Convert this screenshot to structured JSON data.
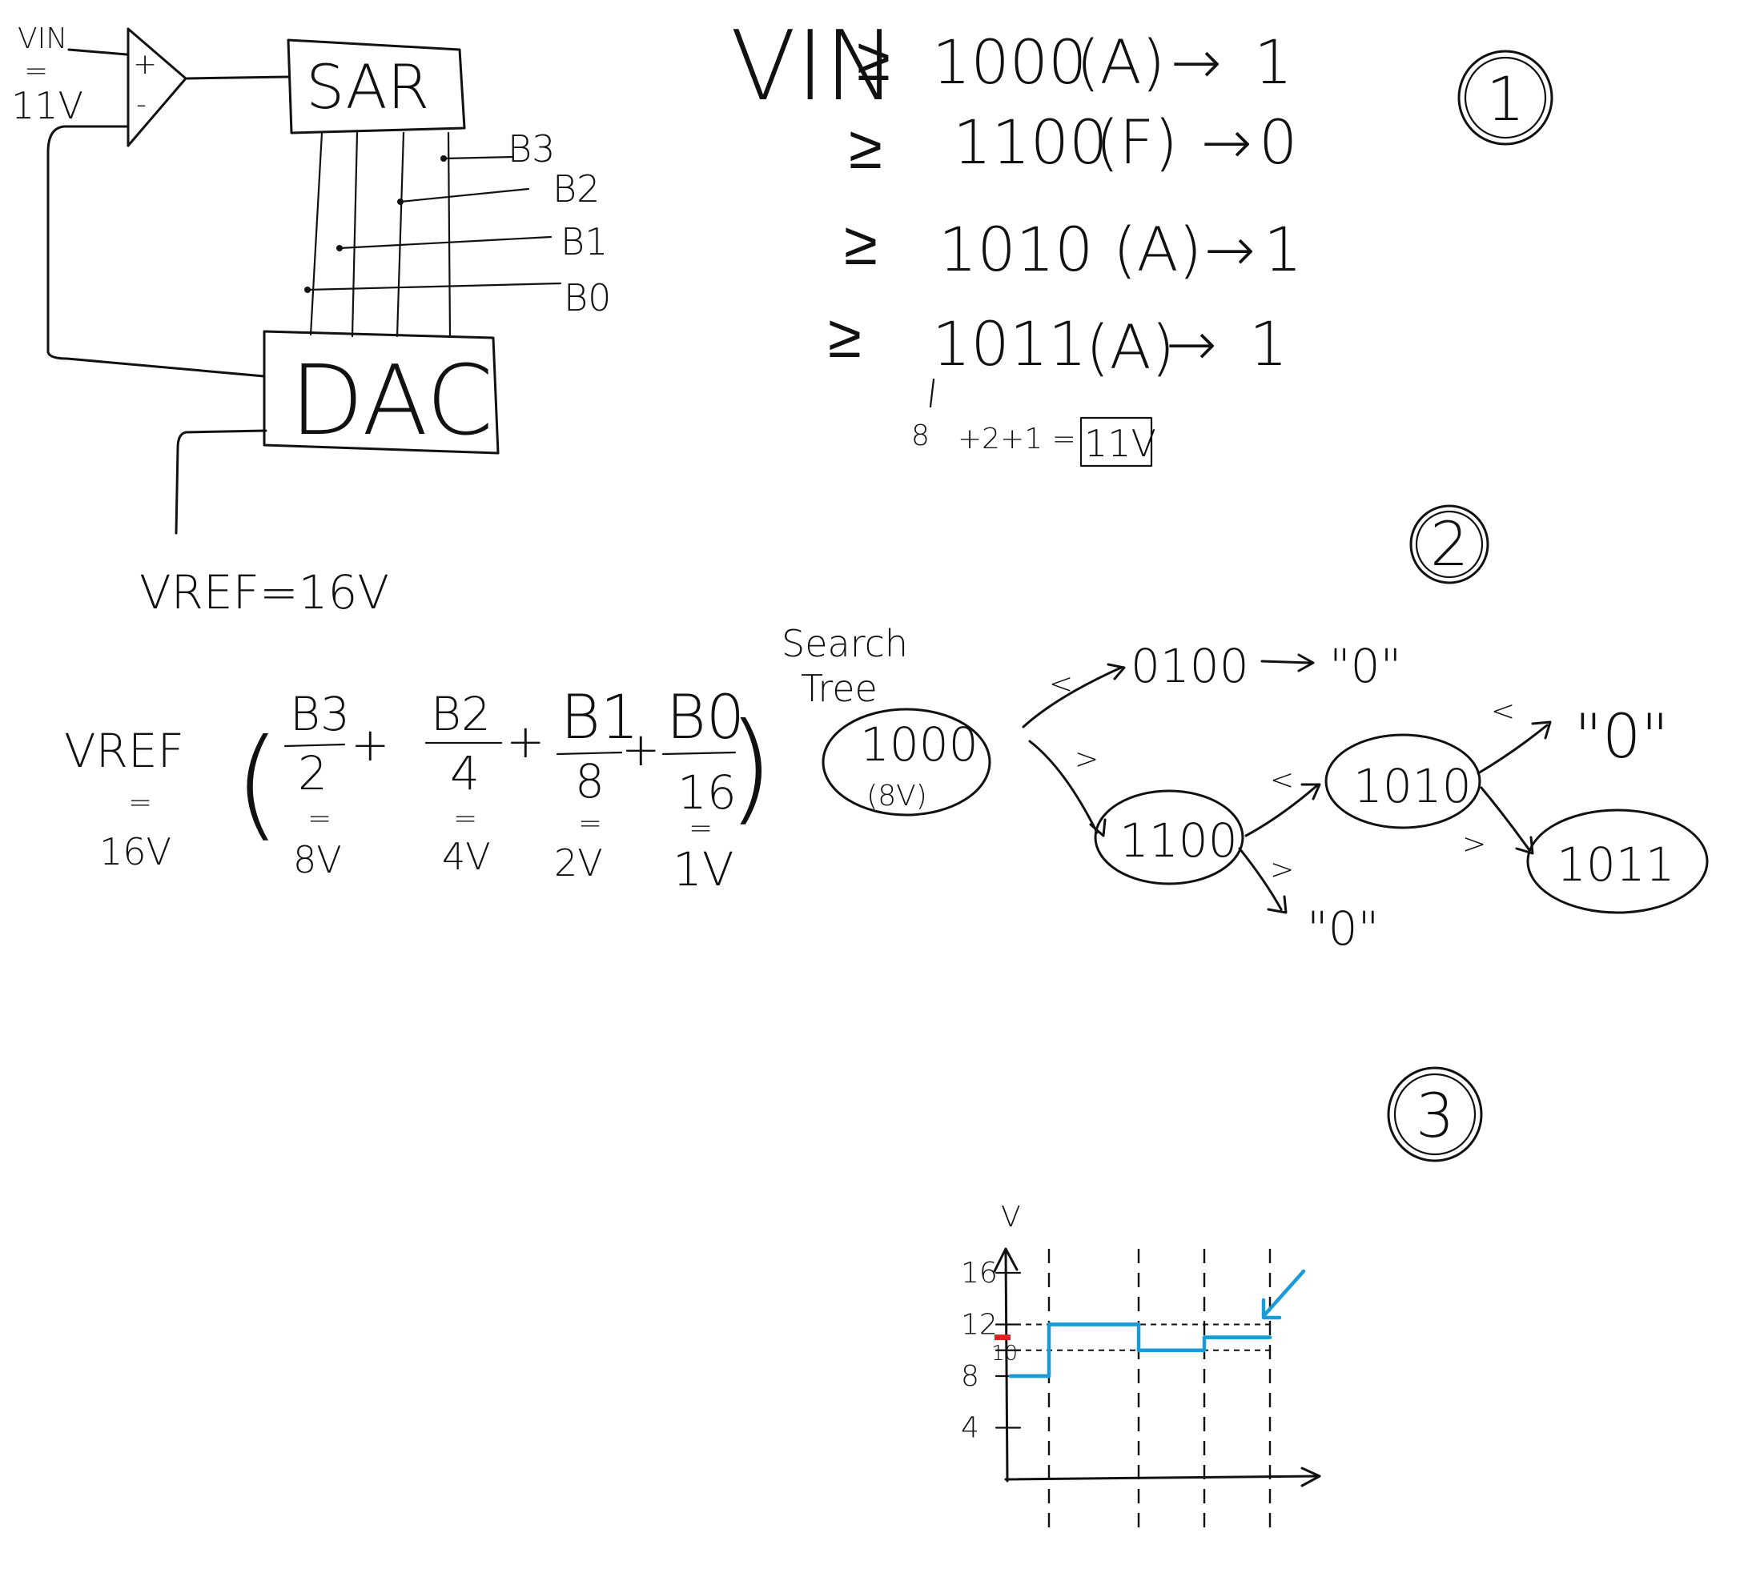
{
  "circuit": {
    "vin_label": "VIN",
    "vin_eq": "=",
    "vin_value": "11V",
    "plus": "+",
    "minus": "-",
    "sar_label": "SAR",
    "dac_label": "DAC",
    "bits": [
      "B3",
      "B2",
      "B1",
      "B0"
    ],
    "vref_label": "VREF=16V"
  },
  "steps": {
    "vin_symbol": "VIN",
    "rows": [
      {
        "op": "≥",
        "code": "1000",
        "mark": "(A)",
        "arrow": "→",
        "bit": "1"
      },
      {
        "op": "≥",
        "code": "1100",
        "mark": "(F)",
        "arrow": "→",
        "bit": "0"
      },
      {
        "op": "≥",
        "code": "1010",
        "mark": "(A)",
        "arrow": "→",
        "bit": "1"
      },
      {
        "op": "≥",
        "code": "1011",
        "mark": "(A)",
        "arrow": "→",
        "bit": "1"
      }
    ],
    "sum_eight": "8",
    "sum_rest": "+2+1 =",
    "result": "11V"
  },
  "section_numbers": [
    "1",
    "2",
    "3"
  ],
  "formula": {
    "vref": "VREF",
    "vref_eq": "=",
    "vref_value": "16V",
    "open_paren": "(",
    "close_paren": ")",
    "terms": [
      {
        "num": "B3",
        "den": "2",
        "eq": "=",
        "value": "8V"
      },
      {
        "num": "B2",
        "den": "4",
        "eq": "=",
        "value": "4V"
      },
      {
        "num": "B1",
        "den": "8",
        "eq": "=",
        "value": "2V"
      },
      {
        "num": "B0",
        "den": "16",
        "eq": "=",
        "value": "1V"
      }
    ],
    "plus": "+"
  },
  "tree": {
    "title_line1": "Search",
    "title_line2": "Tree",
    "root": "1000",
    "root_note": "(8V)",
    "left_child": "0100",
    "left_result": "\"0\"",
    "node_1100": "1100",
    "node_1100_down": "\"0\"",
    "node_1010": "1010",
    "node_1010_up": "\"0\"",
    "node_1011": "1011",
    "lt": "<",
    "gt": ">"
  },
  "chart_data": {
    "type": "line",
    "ylabel": "V",
    "yticks": [
      "16",
      "12",
      "10",
      "8",
      "4"
    ],
    "ylim": [
      0,
      16
    ],
    "steps": 4,
    "series": [
      {
        "values": [
          8,
          12,
          10,
          11
        ],
        "color": "#1a9ad6"
      }
    ],
    "vin_marker": {
      "value": 11,
      "color": "#e02020"
    }
  }
}
